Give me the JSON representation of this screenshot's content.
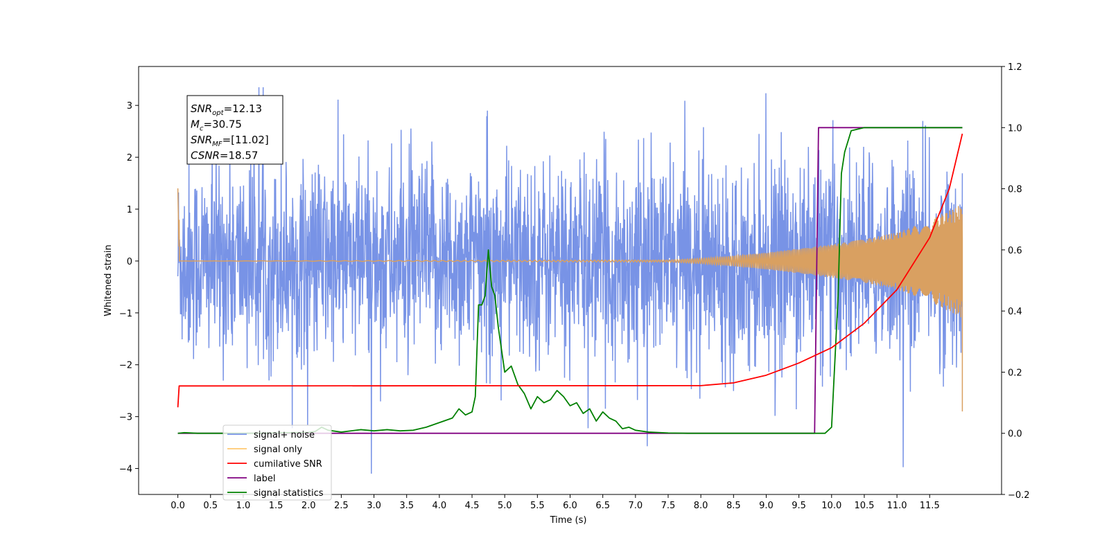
{
  "chart_data": {
    "type": "line",
    "xlabel": "Time (s)",
    "ylabel": "Whitened strain",
    "xlim": [
      -0.6,
      12.6
    ],
    "ylim": [
      -4.5,
      3.75
    ],
    "ylim_right": [
      -0.2,
      1.2
    ],
    "grid": false,
    "legend_position": "lower-left",
    "x_ticks": [
      "0.0",
      "0.5",
      "1.0",
      "1.5",
      "2.0",
      "2.5",
      "3.0",
      "3.5",
      "4.0",
      "4.5",
      "5.0",
      "5.5",
      "6.0",
      "6.5",
      "7.0",
      "7.5",
      "8.0",
      "8.5",
      "9.0",
      "9.5",
      "10.0",
      "10.5",
      "11.0",
      "11.5"
    ],
    "y_ticks_left": [
      "3",
      "2",
      "1",
      "0",
      "−1",
      "−2",
      "−3",
      "−4"
    ],
    "y_ticks_right": [
      "1.2",
      "1.0",
      "0.8",
      "0.6",
      "0.4",
      "0.2",
      "0.0",
      "−0.2"
    ],
    "annotation": {
      "lines": [
        {
          "main": "SNR",
          "sub": "opt",
          "value": "=12.13"
        },
        {
          "main": "M",
          "sub": "c",
          "value": "=30.75"
        },
        {
          "main": "SNR",
          "sub": "MF",
          "value": "=[11.02]"
        },
        {
          "main": "CSNR",
          "sub": "",
          "value": "=18.57"
        }
      ]
    },
    "series": [
      {
        "name": "signal+ noise",
        "axis": "left",
        "color": "#7893e6",
        "description_values": {
          "x_range": [
            0.0,
            12.0
          ],
          "y_min": -4.1,
          "y_max": 3.35,
          "std_approx": 1.0
        }
      },
      {
        "name": "signal only",
        "axis": "left",
        "color": "#d9a061",
        "x": [
          0.0,
          7.5,
          8.0,
          8.5,
          9.0,
          9.5,
          10.0,
          10.5,
          11.0,
          11.5,
          12.0
        ],
        "amplitude": [
          1.4,
          0.02,
          0.05,
          0.1,
          0.16,
          0.24,
          0.32,
          0.42,
          0.55,
          0.78,
          1.1
        ]
      },
      {
        "name": "cumilative SNR",
        "axis": "right",
        "color": "#ff0000",
        "x": [
          0.0,
          0.02,
          0.5,
          8.0,
          8.5,
          9.0,
          9.5,
          10.0,
          10.5,
          11.0,
          11.5,
          11.8,
          12.0
        ],
        "y": [
          0.085,
          0.155,
          0.155,
          0.156,
          0.165,
          0.19,
          0.23,
          0.28,
          0.36,
          0.47,
          0.64,
          0.8,
          0.98
        ]
      },
      {
        "name": "label",
        "axis": "right",
        "color": "#800080",
        "x": [
          0.0,
          9.74,
          9.8,
          12.0
        ],
        "y": [
          0.0,
          0.0,
          1.0,
          1.0
        ]
      },
      {
        "name": "signal statistics",
        "axis": "right",
        "color": "#008000",
        "x": [
          0.0,
          0.1,
          0.3,
          0.5,
          1.0,
          1.5,
          2.0,
          2.1,
          2.2,
          2.3,
          2.5,
          2.8,
          3.0,
          3.2,
          3.4,
          3.6,
          3.8,
          4.0,
          4.2,
          4.3,
          4.4,
          4.5,
          4.55,
          4.6,
          4.65,
          4.7,
          4.75,
          4.8,
          4.85,
          4.9,
          5.0,
          5.1,
          5.2,
          5.3,
          5.4,
          5.5,
          5.6,
          5.7,
          5.8,
          5.9,
          6.0,
          6.1,
          6.2,
          6.3,
          6.4,
          6.5,
          6.6,
          6.7,
          6.8,
          6.9,
          7.0,
          7.2,
          7.5,
          7.8,
          8.0,
          9.0,
          9.5,
          9.9,
          10.0,
          10.1,
          10.15,
          10.2,
          10.3,
          10.5,
          11.0,
          12.0
        ],
        "y": [
          0.0,
          0.002,
          0.0,
          0.0,
          0.0,
          0.001,
          0.003,
          0.006,
          0.02,
          0.01,
          0.004,
          0.012,
          0.008,
          0.012,
          0.008,
          0.01,
          0.02,
          0.035,
          0.05,
          0.08,
          0.06,
          0.07,
          0.12,
          0.42,
          0.42,
          0.45,
          0.6,
          0.48,
          0.45,
          0.35,
          0.2,
          0.22,
          0.16,
          0.13,
          0.08,
          0.12,
          0.1,
          0.11,
          0.14,
          0.12,
          0.09,
          0.1,
          0.065,
          0.08,
          0.04,
          0.07,
          0.05,
          0.04,
          0.015,
          0.02,
          0.01,
          0.004,
          0.001,
          0.0,
          0.0,
          0.0,
          0.0,
          0.0,
          0.02,
          0.45,
          0.85,
          0.92,
          0.99,
          1.0,
          1.0,
          1.0
        ]
      }
    ],
    "legend": [
      {
        "label": "signal+ noise",
        "color": "#7893e6"
      },
      {
        "label": "signal only",
        "color": "#ffc870"
      },
      {
        "label": "cumilative SNR",
        "color": "#ff0000"
      },
      {
        "label": "label",
        "color": "#800080"
      },
      {
        "label": "signal statistics",
        "color": "#008000"
      }
    ]
  }
}
